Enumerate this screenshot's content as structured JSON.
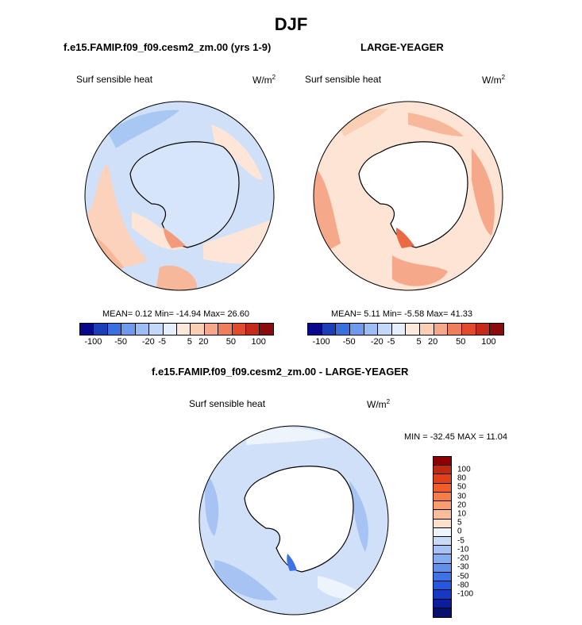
{
  "title": "DJF",
  "panels": {
    "left": {
      "title": "f.e15.FAMIP.f09_f09.cesm2_zm.00 (yrs 1-9)",
      "variable": "Surf sensible heat",
      "units_base": "W/m",
      "units_sup": "2",
      "stats": "MEAN=   0.12  Min= -14.94  Max=  26.60"
    },
    "right": {
      "title": "LARGE-YEAGER",
      "variable": "Surf sensible heat",
      "units_base": "W/m",
      "units_sup": "2",
      "stats": "MEAN=   5.11  Min=  -5.58  Max=  41.33"
    },
    "diff": {
      "title": "f.e15.FAMIP.f09_f09.cesm2_zm.00 - LARGE-YEAGER",
      "variable": "Surf sensible heat",
      "units_base": "W/m",
      "units_sup": "2",
      "stats": "MIN = -32.45 MAX =  11.04"
    }
  },
  "colorbar_top": {
    "colors": [
      "#08088c",
      "#1a3fb8",
      "#3a6fe0",
      "#6e9af0",
      "#9dbdf5",
      "#c4d8f8",
      "#e6effb",
      "#fde9dc",
      "#fbcfb4",
      "#f5a98a",
      "#ef7f5c",
      "#e24a2e",
      "#c62a1a",
      "#8b0c0c"
    ],
    "tick_labels": [
      "-100",
      "-50",
      "-20",
      "-5",
      "5",
      "20",
      "50",
      "100"
    ]
  },
  "colorbar_diff": {
    "colors": [
      "#8b0000",
      "#c0280f",
      "#e0401a",
      "#f25d2c",
      "#f77c48",
      "#f99c70",
      "#fbbd9a",
      "#fde0cc",
      "#eef4fb",
      "#c8dbf7",
      "#a6c3f4",
      "#85abf0",
      "#6090ec",
      "#3e73e8",
      "#2458e2",
      "#1439c4",
      "#0a1e9e",
      "#05106f"
    ],
    "tick_labels": [
      "100",
      "80",
      "50",
      "30",
      "20",
      "10",
      "5",
      "0",
      "-5",
      "-10",
      "-20",
      "-30",
      "-50",
      "-80",
      "-100"
    ]
  },
  "maps": {
    "left": {
      "background": "#cfe0f8"
    },
    "right": {
      "background": "#fde4d4"
    },
    "diff": {
      "background": "#cfe0f8"
    }
  }
}
